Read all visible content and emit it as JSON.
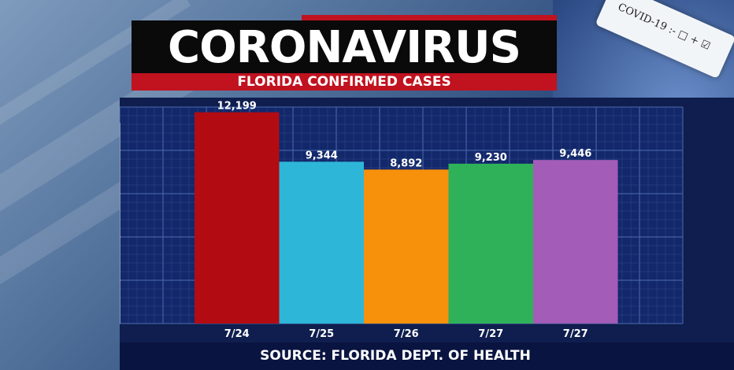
{
  "header": {
    "title": "CORONAVIRUS",
    "subtitle": "FLORIDA CONFIRMED CASES"
  },
  "background": {
    "tube_label": "COVID-19 :- □ + ☑"
  },
  "footer": {
    "source": "SOURCE: FLORIDA DEPT. OF HEALTH"
  },
  "colors": {
    "title_bg": "#0a0a0a",
    "accent_red": "#c1121f",
    "panel_bg": "#0f1e4e",
    "grid": "#2f4a8a"
  },
  "chart_data": {
    "type": "bar",
    "title": "FLORIDA CONFIRMED CASES",
    "categories": [
      "7/24",
      "7/25",
      "7/26",
      "7/27",
      "7/27"
    ],
    "values": [
      12199,
      9344,
      8892,
      9230,
      9446
    ],
    "value_labels": [
      "12,199",
      "9,344",
      "8,892",
      "9,230",
      "9,446"
    ],
    "bar_colors": [
      "#b30b12",
      "#2db6d8",
      "#f7900a",
      "#2fb15a",
      "#a35cb8"
    ],
    "xlabel": "",
    "ylabel": "",
    "ylim": [
      0,
      13000
    ],
    "grid": true,
    "legend": "none"
  }
}
